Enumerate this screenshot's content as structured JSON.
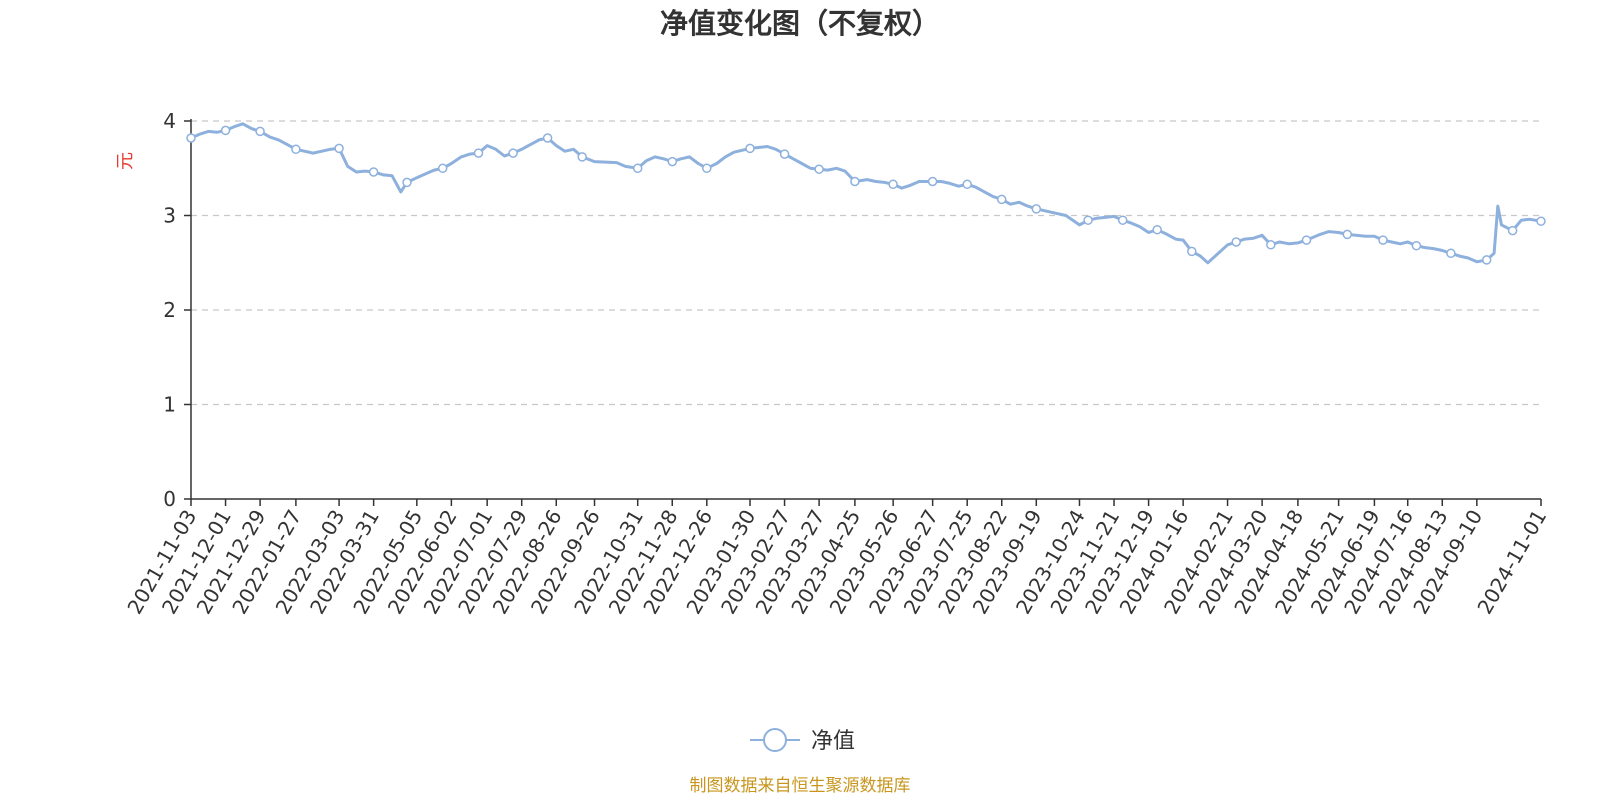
{
  "chart_data": {
    "type": "line",
    "title": "净值变化图（不复权）",
    "ylabel": "元",
    "ylim": [
      0,
      4
    ],
    "yticks": [
      "0",
      "1",
      "2",
      "3",
      "4"
    ],
    "grid": true,
    "legend_position": "bottom",
    "x_ticks": [
      "2021-11-03",
      "2021-12-01",
      "2021-12-29",
      "2022-01-27",
      "2022-03-03",
      "2022-03-31",
      "2022-05-05",
      "2022-06-02",
      "2022-07-01",
      "2022-07-29",
      "2022-08-26",
      "2022-09-26",
      "2022-10-31",
      "2022-11-28",
      "2022-12-26",
      "2023-01-30",
      "2023-02-27",
      "2023-03-27",
      "2023-04-25",
      "2023-05-26",
      "2023-06-27",
      "2023-07-25",
      "2023-08-22",
      "2023-09-19",
      "2023-10-24",
      "2023-11-21",
      "2023-12-19",
      "2024-01-16",
      "2024-02-21",
      "2024-03-20",
      "2024-04-18",
      "2024-05-21",
      "2024-06-19",
      "2024-07-16",
      "2024-08-13",
      "2024-09-10",
      "2024-11-01"
    ],
    "series": [
      {
        "name": "净值",
        "color": "#8eb0dd",
        "x": [
          "2021-11-03",
          "2021-11-10",
          "2021-11-17",
          "2021-11-24",
          "2021-12-01",
          "2021-12-08",
          "2021-12-15",
          "2021-12-22",
          "2021-12-29",
          "2022-01-06",
          "2022-01-13",
          "2022-01-20",
          "2022-01-27",
          "2022-02-10",
          "2022-02-17",
          "2022-02-24",
          "2022-03-03",
          "2022-03-10",
          "2022-03-17",
          "2022-03-24",
          "2022-03-31",
          "2022-04-08",
          "2022-04-15",
          "2022-04-22",
          "2022-04-27",
          "2022-05-05",
          "2022-05-12",
          "2022-05-19",
          "2022-05-26",
          "2022-06-02",
          "2022-06-10",
          "2022-06-17",
          "2022-06-24",
          "2022-07-01",
          "2022-07-08",
          "2022-07-15",
          "2022-07-22",
          "2022-07-29",
          "2022-08-05",
          "2022-08-12",
          "2022-08-19",
          "2022-08-26",
          "2022-09-02",
          "2022-09-09",
          "2022-09-16",
          "2022-09-26",
          "2022-10-14",
          "2022-10-21",
          "2022-10-31",
          "2022-11-07",
          "2022-11-14",
          "2022-11-21",
          "2022-11-28",
          "2022-12-05",
          "2022-12-12",
          "2022-12-19",
          "2022-12-26",
          "2023-01-03",
          "2023-01-10",
          "2023-01-17",
          "2023-01-30",
          "2023-02-06",
          "2023-02-13",
          "2023-02-20",
          "2023-02-27",
          "2023-03-06",
          "2023-03-13",
          "2023-03-20",
          "2023-03-27",
          "2023-04-03",
          "2023-04-10",
          "2023-04-17",
          "2023-04-25",
          "2023-05-05",
          "2023-05-12",
          "2023-05-19",
          "2023-05-26",
          "2023-06-02",
          "2023-06-09",
          "2023-06-16",
          "2023-06-27",
          "2023-07-04",
          "2023-07-11",
          "2023-07-18",
          "2023-07-25",
          "2023-08-01",
          "2023-08-08",
          "2023-08-15",
          "2023-08-22",
          "2023-08-29",
          "2023-09-05",
          "2023-09-12",
          "2023-09-19",
          "2023-09-26",
          "2023-10-13",
          "2023-10-24",
          "2023-10-31",
          "2023-11-07",
          "2023-11-14",
          "2023-11-21",
          "2023-11-28",
          "2023-12-05",
          "2023-12-12",
          "2023-12-19",
          "2023-12-26",
          "2024-01-03",
          "2024-01-10",
          "2024-01-16",
          "2024-01-23",
          "2024-01-30",
          "2024-02-05",
          "2024-02-21",
          "2024-02-28",
          "2024-03-06",
          "2024-03-13",
          "2024-03-20",
          "2024-03-27",
          "2024-04-03",
          "2024-04-11",
          "2024-04-18",
          "2024-04-25",
          "2024-05-06",
          "2024-05-13",
          "2024-05-21",
          "2024-05-28",
          "2024-06-04",
          "2024-06-12",
          "2024-06-19",
          "2024-06-26",
          "2024-07-03",
          "2024-07-10",
          "2024-07-16",
          "2024-07-23",
          "2024-07-30",
          "2024-08-06",
          "2024-08-13",
          "2024-08-20",
          "2024-08-27",
          "2024-09-03",
          "2024-09-10",
          "2024-09-18",
          "2024-09-24",
          "2024-09-27",
          "2024-09-30",
          "2024-10-09",
          "2024-10-16",
          "2024-10-23",
          "2024-11-01"
        ],
        "y": [
          3.82,
          3.86,
          3.89,
          3.88,
          3.9,
          3.94,
          3.97,
          3.92,
          3.89,
          3.83,
          3.8,
          3.75,
          3.7,
          3.66,
          3.68,
          3.7,
          3.71,
          3.52,
          3.46,
          3.47,
          3.46,
          3.43,
          3.42,
          3.25,
          3.35,
          3.4,
          3.44,
          3.48,
          3.5,
          3.55,
          3.62,
          3.65,
          3.66,
          3.74,
          3.7,
          3.63,
          3.66,
          3.7,
          3.75,
          3.8,
          3.82,
          3.74,
          3.68,
          3.7,
          3.62,
          3.57,
          3.56,
          3.52,
          3.5,
          3.58,
          3.62,
          3.6,
          3.57,
          3.6,
          3.62,
          3.55,
          3.5,
          3.55,
          3.62,
          3.67,
          3.71,
          3.72,
          3.73,
          3.7,
          3.65,
          3.6,
          3.55,
          3.5,
          3.49,
          3.48,
          3.5,
          3.47,
          3.36,
          3.38,
          3.36,
          3.35,
          3.33,
          3.29,
          3.32,
          3.36,
          3.36,
          3.36,
          3.34,
          3.31,
          3.33,
          3.3,
          3.25,
          3.2,
          3.17,
          3.12,
          3.14,
          3.1,
          3.07,
          3.05,
          3.0,
          2.9,
          2.95,
          2.97,
          2.98,
          2.99,
          2.95,
          2.92,
          2.88,
          2.82,
          2.85,
          2.8,
          2.75,
          2.74,
          2.62,
          2.57,
          2.5,
          2.69,
          2.72,
          2.75,
          2.76,
          2.79,
          2.69,
          2.72,
          2.7,
          2.71,
          2.74,
          2.8,
          2.83,
          2.82,
          2.8,
          2.79,
          2.78,
          2.78,
          2.74,
          2.72,
          2.7,
          2.72,
          2.68,
          2.66,
          2.65,
          2.63,
          2.6,
          2.57,
          2.55,
          2.51,
          2.53,
          2.6,
          3.1,
          2.9,
          2.84,
          2.95,
          2.96,
          2.94
        ]
      }
    ],
    "source": "制图数据来自恒生聚源数据库",
    "title_color": "#333333",
    "ylabel_color": "#e8382f",
    "source_color": "#c8961e",
    "grid_color": "#c8c8c8",
    "axis_color": "#333333"
  }
}
